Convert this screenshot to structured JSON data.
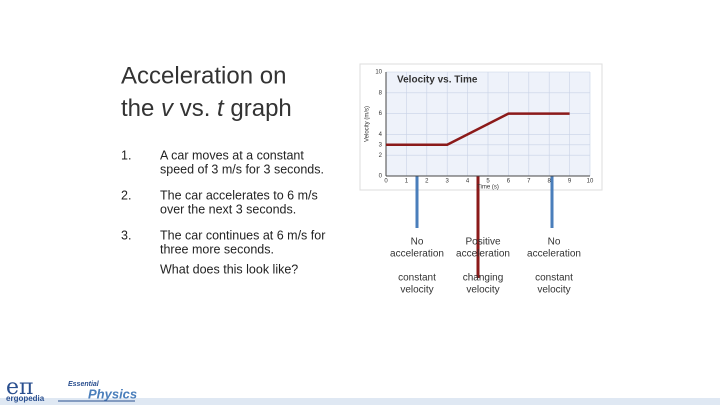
{
  "title": {
    "line1": "Acceleration on",
    "pre": "the ",
    "v": "v",
    "mid": " vs. ",
    "t": "t",
    "post": " graph"
  },
  "items": [
    {
      "number": "1.",
      "lines": [
        "A car moves at a constant",
        "speed of 3 m/s for 3 seconds."
      ]
    },
    {
      "number": "2.",
      "lines": [
        "The car accelerates to 6 m/s",
        "over the next 3 seconds."
      ]
    },
    {
      "number": "3.",
      "lines": [
        "The car continues at 6 m/s for",
        "three more seconds."
      ]
    }
  ],
  "question": "What does this look like?",
  "graph": {
    "type": "line",
    "title": "Velocity vs. Time",
    "x_label": "Time (s)",
    "y_label": "Velocity (m/s)",
    "xlim": [
      0,
      10
    ],
    "ylim": [
      0,
      10
    ],
    "xticks": [
      0,
      1,
      2,
      3,
      4,
      5,
      6,
      7,
      8,
      9,
      10
    ],
    "yticks": [
      0,
      2,
      3,
      4,
      6,
      8,
      10
    ],
    "grid": true,
    "color": "#8b1a1a",
    "x": [
      0,
      3,
      6,
      9
    ],
    "values": [
      3,
      3,
      6,
      6
    ]
  },
  "annotations": [
    {
      "lines": [
        "No",
        "acceleration"
      ],
      "sub": [
        "constant",
        "velocity"
      ]
    },
    {
      "lines": [
        "Positive",
        "acceleration"
      ],
      "sub": [
        "changing",
        "velocity"
      ]
    },
    {
      "lines": [
        "No",
        "acceleration"
      ],
      "sub": [
        "constant",
        "velocity"
      ]
    }
  ],
  "logo": {
    "symbol": "eπ",
    "brand": "ergopedia",
    "series_top": "Essential",
    "series_main": "Physics"
  }
}
